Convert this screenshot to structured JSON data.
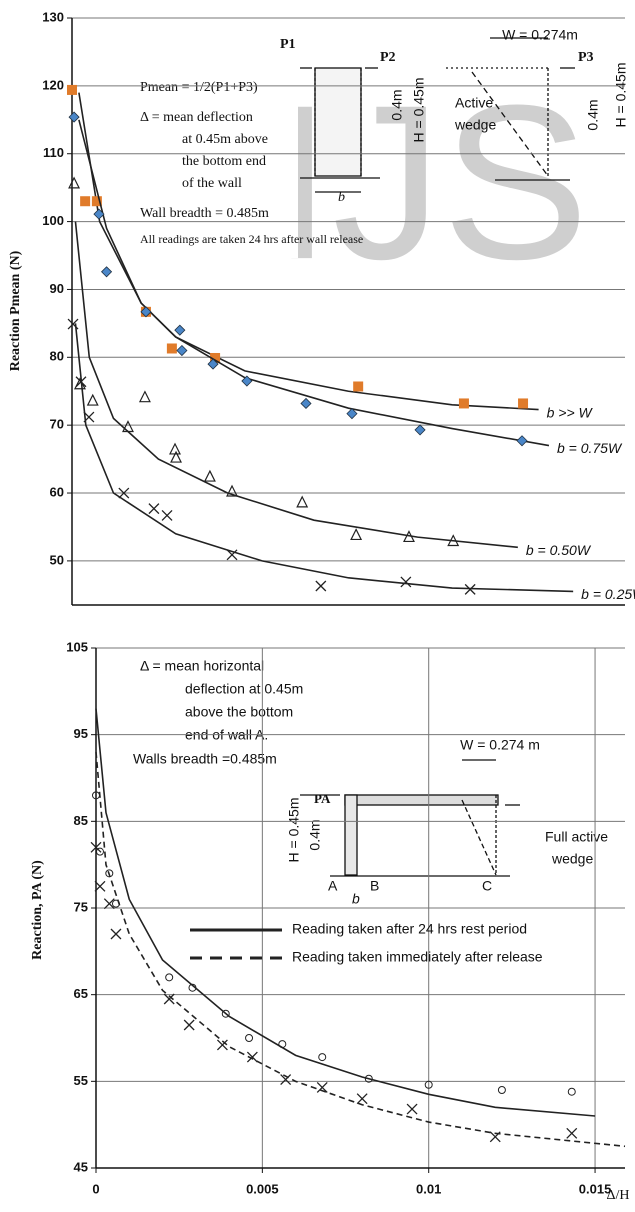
{
  "chart_data": [
    {
      "type": "scatter",
      "y_label": "Reaction Pmean (N)",
      "watermark": "IJS",
      "ylim": [
        43.5,
        130
      ],
      "yticks": [
        50,
        60,
        70,
        80,
        90,
        100,
        110,
        120,
        130
      ],
      "xlim": [
        0,
        0.016
      ],
      "grid": true,
      "annotations": [
        "Pmean = 1/2(P1+P3)",
        "Δ = mean deflection",
        "at 0.45m above",
        "the bottom end",
        "of the wall",
        "Wall breadth = 0.485m",
        "All readings are taken 24 hrs after wall release",
        "P1",
        "P2",
        "0.4m",
        "H = 0.45m",
        "b",
        "W = 0.274m",
        "Active",
        "wedge",
        "P3",
        "0.4m",
        "H = 0.45m"
      ],
      "series": [
        {
          "name": "b >> W",
          "color": "#e07b2a",
          "marker": "square",
          "x": [
            0,
            0.00038,
            0.00072,
            0.00214,
            0.00289,
            0.00414,
            0.00828,
            0.01134,
            0.01305
          ],
          "values": [
            119.4,
            103.0,
            103.0,
            86.7,
            81.3,
            79.9,
            75.7,
            73.2,
            73.2
          ],
          "fit_x": [
            0.0002,
            0.0008,
            0.002,
            0.003,
            0.005,
            0.008,
            0.011,
            0.0135
          ],
          "fit_values": [
            119,
            100,
            88,
            83,
            78,
            75,
            73,
            72.3
          ]
        },
        {
          "name": "b = 0.75W",
          "color": "#4a86c8",
          "marker": "diamond",
          "x": [
            6e-05,
            0.00078,
            0.001,
            0.00214,
            0.00312,
            0.00318,
            0.00408,
            0.00506,
            0.00677,
            0.0081,
            0.01007,
            0.01302
          ],
          "values": [
            115.4,
            101.1,
            92.6,
            86.7,
            84.0,
            81.0,
            79.0,
            76.5,
            73.2,
            71.7,
            69.3,
            67.7
          ],
          "fit_x": [
            0.0002,
            0.001,
            0.002,
            0.003,
            0.005,
            0.008,
            0.011,
            0.0138
          ],
          "fit_values": [
            115,
            99,
            88,
            83,
            77,
            72.5,
            69.5,
            67
          ]
        },
        {
          "name": "b = 0.50W",
          "color": "#222222",
          "marker": "triangle",
          "x": [
            6e-05,
            0.00023,
            0.0006,
            0.00162,
            0.00211,
            0.00298,
            0.00301,
            0.00399,
            0.00463,
            0.00666,
            0.00822,
            0.00975,
            0.01103
          ],
          "values": [
            105.7,
            76.1,
            73.7,
            69.8,
            74.2,
            66.5,
            65.3,
            62.5,
            60.3,
            58.7,
            53.9,
            53.6,
            53.0
          ],
          "fit_x": [
            0.0001,
            0.0005,
            0.0012,
            0.0025,
            0.0045,
            0.007,
            0.01,
            0.0129
          ],
          "fit_values": [
            100,
            80,
            71,
            65,
            60,
            56,
            53.5,
            52
          ]
        },
        {
          "name": "b = 0.25W",
          "color": "#222222",
          "marker": "cross",
          "x": [
            3e-05,
            0.00026,
            0.00049,
            0.0015,
            0.00237,
            0.00275,
            0.00463,
            0.0072,
            0.00966,
            0.01152
          ],
          "values": [
            84.9,
            76.4,
            71.2,
            60.0,
            57.7,
            56.7,
            50.9,
            46.3,
            46.9,
            45.8
          ],
          "fit_x": [
            0.0001,
            0.0004,
            0.0012,
            0.003,
            0.0055,
            0.008,
            0.011,
            0.0145
          ],
          "fit_values": [
            85,
            70,
            60,
            54,
            50,
            47.5,
            46,
            45.5
          ]
        }
      ]
    },
    {
      "type": "scatter",
      "y_label": "Reaction,  PA (N)",
      "x_label": "Δ/H",
      "ylim": [
        45,
        105
      ],
      "yticks": [
        45,
        55,
        65,
        75,
        85,
        95,
        105
      ],
      "xlim": [
        0,
        0.0159
      ],
      "xticks": [
        0,
        0.005,
        0.01,
        0.015
      ],
      "grid": true,
      "legend": "center",
      "annotations": [
        "Δ =  mean horizontal",
        "deflection  at 0.45m",
        "above the bottom",
        "end of wall A.",
        "Walls breadth  =0.485m",
        "W = 0.274 m",
        "H = 0.45m",
        "0.4m",
        "PA",
        "A",
        "B",
        "C",
        "b",
        "Full active",
        "wedge"
      ],
      "series": [
        {
          "name": "Reading  taken  after 24 hrs rest period",
          "color": "#222222",
          "marker": "circle",
          "dash": false,
          "x": [
            0,
            0.00012,
            0.0004,
            0.0006,
            0.0022,
            0.0029,
            0.0039,
            0.0046,
            0.0056,
            0.0068,
            0.0082,
            0.01,
            0.0122,
            0.0143
          ],
          "values": [
            88,
            81.5,
            79,
            75.5,
            67,
            65.8,
            62.8,
            60,
            59.3,
            57.8,
            55.3,
            54.6,
            54,
            53.8
          ],
          "fit_x": [
            0,
            0.0003,
            0.001,
            0.002,
            0.004,
            0.006,
            0.008,
            0.01,
            0.012,
            0.015
          ],
          "fit_values": [
            98,
            86,
            76,
            69,
            62.5,
            58,
            55.5,
            53.5,
            52,
            51
          ]
        },
        {
          "name": "Reading  taken  immediately  after release",
          "color": "#222222",
          "marker": "cross",
          "dash": true,
          "x": [
            0,
            0.00012,
            0.0004,
            0.0006,
            0.0022,
            0.0028,
            0.0038,
            0.0047,
            0.0057,
            0.0068,
            0.008,
            0.0095,
            0.012,
            0.0143
          ],
          "values": [
            82,
            77.5,
            75.5,
            72,
            64.5,
            61.5,
            59.2,
            57.8,
            55.2,
            54.3,
            53,
            51.8,
            48.6,
            49
          ],
          "fit_x": [
            0,
            0.0003,
            0.001,
            0.002,
            0.004,
            0.006,
            0.008,
            0.01,
            0.012,
            0.0159
          ],
          "fit_values": [
            93,
            80,
            72,
            65.5,
            59,
            55,
            52.3,
            50.3,
            49,
            47.5
          ]
        }
      ]
    }
  ]
}
